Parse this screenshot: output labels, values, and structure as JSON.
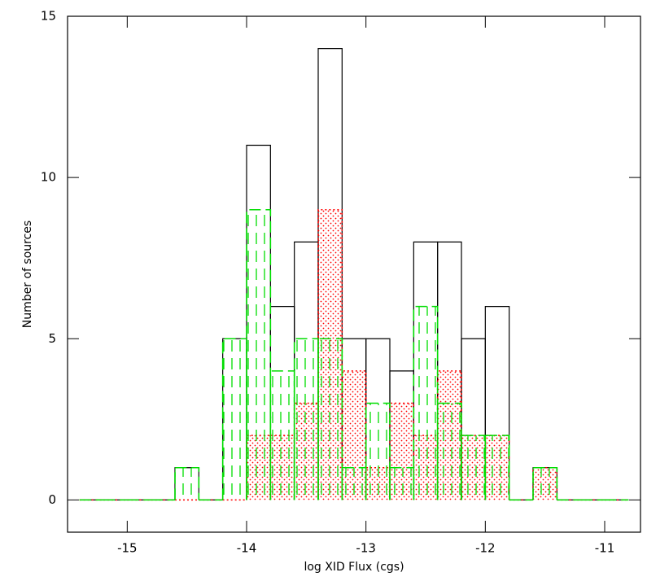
{
  "chart_data": {
    "type": "histogram",
    "x_label": "log XID Flux (cgs)",
    "y_label": "Number of sources",
    "bins": [
      -15.4,
      -15.2,
      -15.0,
      -14.8,
      -14.6,
      -14.4,
      -14.2,
      -14.0,
      -13.8,
      -13.6,
      -13.4,
      -13.2,
      -13.0,
      -12.8,
      -12.6,
      -12.4,
      -12.2,
      -12.0,
      -11.8,
      -11.6,
      -11.4,
      -11.2,
      -11.0,
      -10.8
    ],
    "series": [
      {
        "color": "#000000",
        "values": [
          0,
          0,
          0,
          0,
          1,
          0,
          5,
          11,
          6,
          8,
          14,
          5,
          5,
          4,
          8,
          8,
          5,
          6,
          0,
          1,
          0,
          0,
          0
        ]
      },
      {
        "color": "#ff0000",
        "values": [
          0,
          0,
          0,
          0,
          0,
          0,
          0,
          2,
          2,
          3,
          9,
          4,
          1,
          3,
          2,
          4,
          2,
          2,
          0,
          1,
          0,
          0,
          0
        ]
      },
      {
        "color": "#00dd00",
        "values": [
          0,
          0,
          0,
          0,
          1,
          0,
          5,
          9,
          4,
          5,
          5,
          1,
          3,
          1,
          6,
          3,
          2,
          2,
          0,
          1,
          0,
          0,
          0
        ]
      }
    ],
    "xlim": [
      -15.5,
      -10.7
    ],
    "xticks": [
      -15,
      -14,
      -13,
      -12,
      -11
    ],
    "ylim": [
      -1,
      15
    ],
    "yticks": [
      0,
      5,
      10,
      15
    ]
  }
}
